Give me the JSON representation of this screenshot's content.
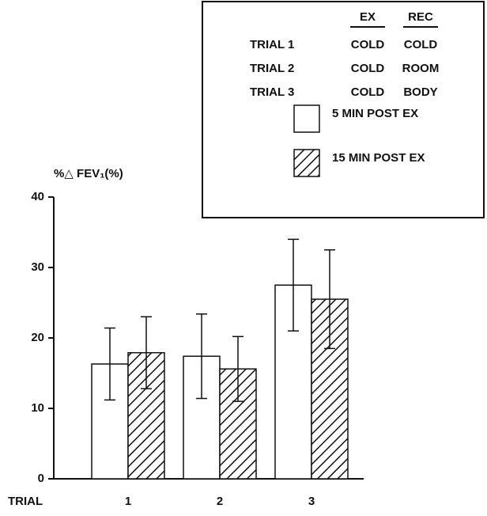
{
  "chart_data": {
    "type": "bar",
    "y_label": "%△ FEV₁(%)",
    "x_label": "TRIAL",
    "categories": [
      "1",
      "2",
      "3"
    ],
    "ylim": [
      0,
      40
    ],
    "yticks": [
      0,
      10,
      20,
      30,
      40
    ],
    "series": [
      {
        "name": "5 MIN POST EX",
        "color": "#ffffff",
        "hatch": false,
        "values": [
          16.3,
          17.4,
          27.5
        ],
        "errors": [
          5.1,
          6.0,
          6.5
        ]
      },
      {
        "name": "15 MIN POST EX",
        "color": "#ffffff",
        "hatch": true,
        "values": [
          17.9,
          15.6,
          25.5
        ],
        "errors": [
          5.1,
          4.6,
          7.0
        ]
      }
    ],
    "legend_table": {
      "header": [
        "EX",
        "REC"
      ],
      "rows": [
        [
          "TRIAL 1",
          "COLD",
          "COLD"
        ],
        [
          "TRIAL 2",
          "COLD",
          "ROOM"
        ],
        [
          "TRIAL 3",
          "COLD",
          "BODY"
        ]
      ]
    }
  }
}
